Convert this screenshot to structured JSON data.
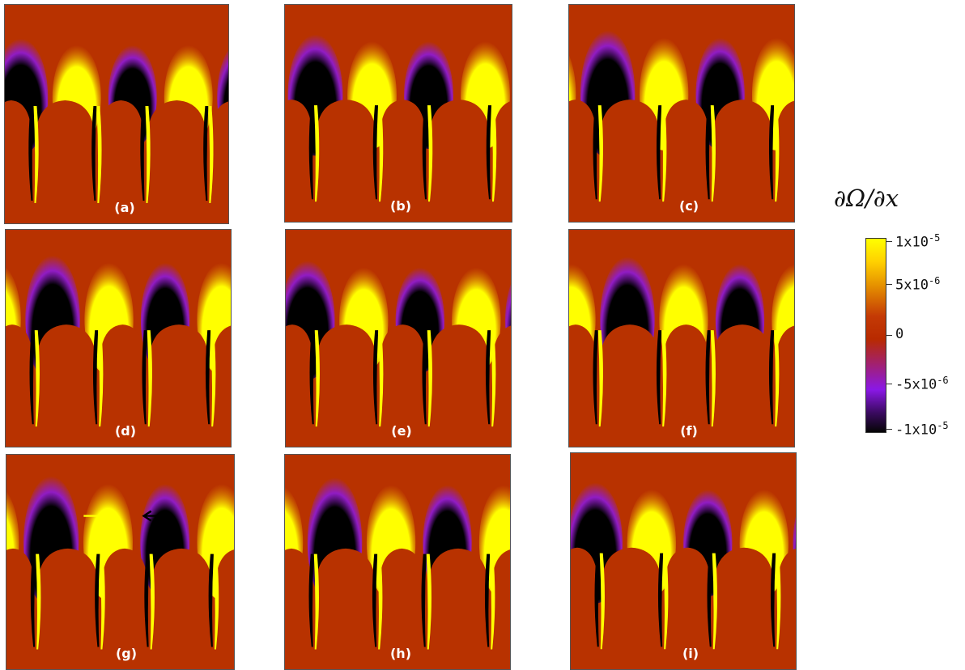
{
  "panels": [
    {
      "label": "(a)",
      "phase": 0.0,
      "amp": 0.55
    },
    {
      "label": "(b)",
      "phase": 0.25,
      "amp": 0.7
    },
    {
      "label": "(c)",
      "phase": 0.4,
      "amp": 0.85
    },
    {
      "label": "(d)",
      "phase": 0.55,
      "amp": 0.85
    },
    {
      "label": "(e)",
      "phase": 0.1,
      "amp": 0.65
    },
    {
      "label": "(f)",
      "phase": 0.75,
      "amp": 0.8
    },
    {
      "label": "(g)",
      "phase": 0.5,
      "amp": 1.0
    },
    {
      "label": "(h)",
      "phase": 0.6,
      "amp": 0.95
    },
    {
      "label": "(i)",
      "phase": 0.15,
      "amp": 0.7
    }
  ],
  "colorbar": {
    "title": "∂Ω/∂x",
    "ticks": [
      {
        "mantissa": "1x10",
        "exp": "-5"
      },
      {
        "mantissa": "5x10",
        "exp": "-6"
      },
      {
        "mantissa": "0",
        "exp": ""
      },
      {
        "mantissa": "-5x10",
        "exp": "-6"
      },
      {
        "mantissa": "-1x10",
        "exp": "-5"
      }
    ]
  },
  "colors": {
    "background": "#b83200",
    "positive": "#ffff00",
    "negative": "#000000",
    "negative_halo": "#8a18e6",
    "positive_halo": "#e69200"
  },
  "arrows": [
    {
      "panel": "(g)",
      "direction": "right",
      "color": "#ffff00"
    },
    {
      "panel": "(g)",
      "direction": "left",
      "color": "#000000"
    }
  ]
}
